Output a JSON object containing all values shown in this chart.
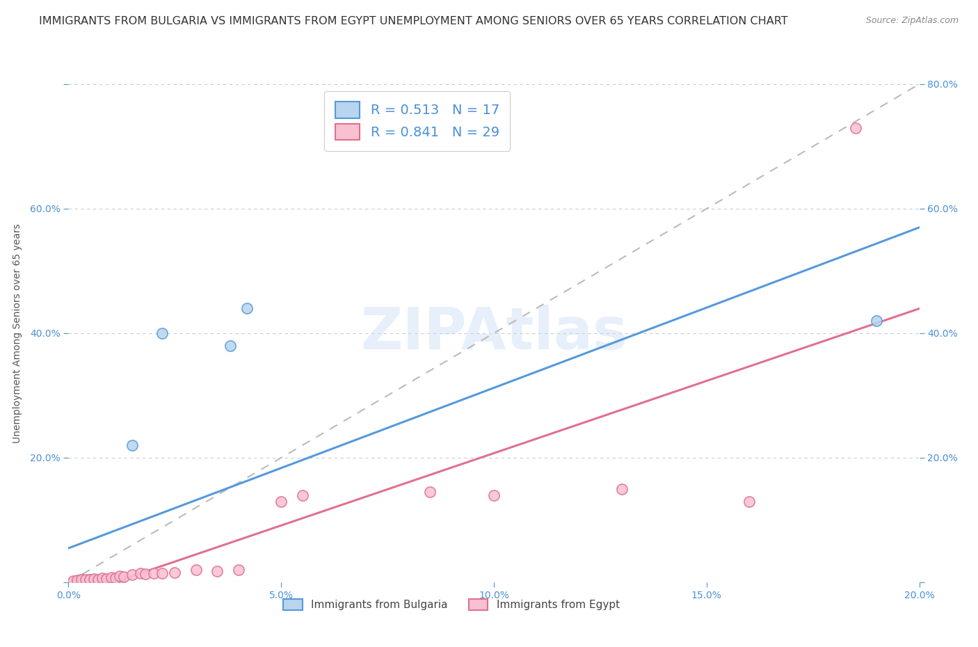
{
  "title": "IMMIGRANTS FROM BULGARIA VS IMMIGRANTS FROM EGYPT UNEMPLOYMENT AMONG SENIORS OVER 65 YEARS CORRELATION CHART",
  "source": "Source: ZipAtlas.com",
  "ylabel": "Unemployment Among Seniors over 65 years",
  "xlim": [
    0.0,
    0.2
  ],
  "ylim": [
    0.0,
    0.8
  ],
  "xticks": [
    0.0,
    0.05,
    0.1,
    0.15,
    0.2
  ],
  "yticks": [
    0.0,
    0.2,
    0.4,
    0.6,
    0.8
  ],
  "watermark": "ZIPAtlas",
  "bulgaria": {
    "R": 0.513,
    "N": 17,
    "face_color": "#b8d4ee",
    "edge_color": "#5599dd",
    "line_color": "#5599dd",
    "x": [
      0.001,
      0.002,
      0.003,
      0.003,
      0.004,
      0.005,
      0.006,
      0.007,
      0.008,
      0.009,
      0.01,
      0.012,
      0.015,
      0.022,
      0.038,
      0.042,
      0.19
    ],
    "y": [
      0.0,
      0.002,
      0.003,
      0.005,
      0.003,
      0.005,
      0.004,
      0.003,
      0.003,
      0.005,
      0.004,
      0.005,
      0.22,
      0.4,
      0.38,
      0.44,
      0.42
    ]
  },
  "egypt": {
    "R": 0.841,
    "N": 29,
    "face_color": "#f8c0d0",
    "edge_color": "#e07090",
    "line_color": "#e07090",
    "x": [
      0.001,
      0.002,
      0.003,
      0.004,
      0.005,
      0.006,
      0.007,
      0.008,
      0.009,
      0.01,
      0.011,
      0.012,
      0.013,
      0.015,
      0.017,
      0.018,
      0.02,
      0.022,
      0.025,
      0.03,
      0.035,
      0.04,
      0.05,
      0.055,
      0.085,
      0.1,
      0.13,
      0.16,
      0.185
    ],
    "y": [
      0.002,
      0.003,
      0.004,
      0.005,
      0.004,
      0.006,
      0.005,
      0.007,
      0.006,
      0.008,
      0.007,
      0.01,
      0.009,
      0.012,
      0.015,
      0.013,
      0.015,
      0.014,
      0.016,
      0.02,
      0.018,
      0.02,
      0.13,
      0.14,
      0.145,
      0.14,
      0.15,
      0.13,
      0.73
    ]
  },
  "bg_color": "#ffffff",
  "grid_color": "#cccccc",
  "tick_color": "#4a90d9",
  "title_color": "#333333",
  "title_fontsize": 11.5,
  "axis_label_fontsize": 10,
  "tick_fontsize": 10,
  "legend_color": "#4a90d9"
}
